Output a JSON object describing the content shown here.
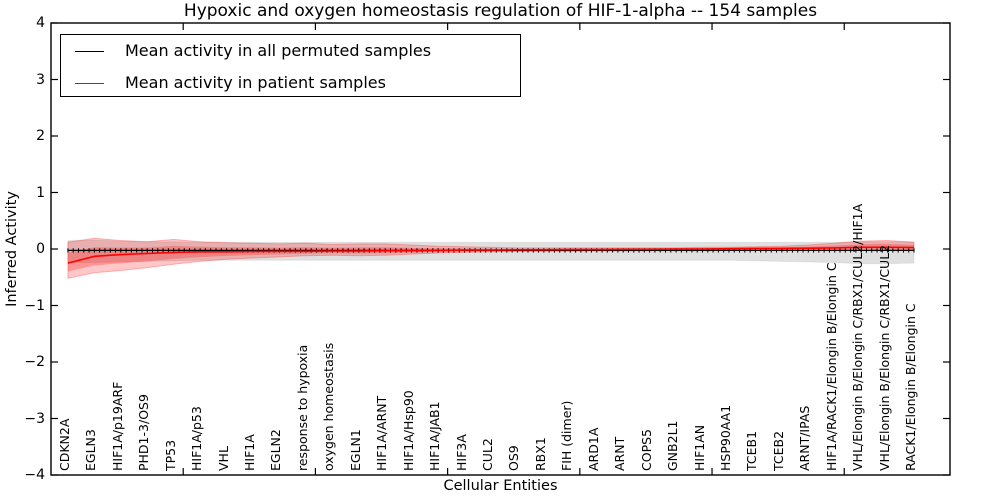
{
  "chart_data": {
    "type": "line",
    "title": "Hypoxic and oxygen homeostasis regulation of HIF-1-alpha -- 154 samples",
    "xlabel": "Cellular Entities",
    "ylabel": "Inferred Activity",
    "ylim": [
      -4,
      4
    ],
    "xlim": [
      0,
      170
    ],
    "grid": false,
    "legend_position": "upper left",
    "y_tick_values": [
      4,
      3,
      2,
      1,
      0,
      -1,
      -2,
      -3,
      -4
    ],
    "y_tick_labels": [
      "4",
      "3",
      "2",
      "1",
      "0",
      "−1",
      "−2",
      "−3",
      "−4"
    ],
    "x_tick_values": [
      25,
      50,
      75,
      100,
      125,
      150
    ],
    "category_x_start": 3.2,
    "category_x_step": 5,
    "categories": [
      "CDKN2A",
      "EGLN3",
      "HIF1A/p19ARF",
      "PHD1-3/OS9",
      "TP53",
      "HIF1A/p53",
      "VHL",
      "HIF1A",
      "EGLN2",
      "response to hypoxia",
      "oxygen homeostasis",
      "EGLN1",
      "HIF1A/ARNT",
      "HIF1A/Hsp90",
      "HIF1A/JAB1",
      "HIF3A",
      "CUL2",
      "OS9",
      "RBX1",
      "FIH (dimer)",
      "ARD1A",
      "ARNT",
      "COPS5",
      "GNB2L1",
      "HIF1AN",
      "HSP90AA1",
      "TCEB1",
      "TCEB2",
      "ARNT/IPAS",
      "HIF1A/RACK1/Elongin B/Elongin C",
      "VHL/Elongin B/Elongin C/RBX1/CUL2/HIF1A",
      "VHL/Elongin B/Elongin C/RBX1/CUL2",
      "RACK1/Elongin B/Elongin C"
    ],
    "series": [
      {
        "name": "Mean activity in all permuted samples",
        "color": "#000000",
        "line_width": 1.3,
        "markers": true,
        "marker_count": 161,
        "values": [
          -0.025,
          -0.025,
          -0.025,
          -0.025,
          -0.025,
          -0.025,
          -0.025,
          -0.025,
          -0.025,
          -0.025,
          -0.025,
          -0.025,
          -0.025,
          -0.025,
          -0.025,
          -0.025,
          -0.025,
          -0.025,
          -0.025,
          -0.025,
          -0.025,
          -0.025,
          -0.025,
          -0.025,
          -0.025,
          -0.025,
          -0.025,
          -0.025,
          -0.025,
          -0.025,
          -0.025,
          -0.025,
          -0.025
        ],
        "band_upper": [
          0.15,
          0.16,
          0.14,
          0.13,
          0.13,
          0.12,
          0.12,
          0.12,
          0.12,
          0.12,
          0.12,
          0.12,
          0.12,
          0.12,
          0.12,
          0.12,
          0.12,
          0.12,
          0.12,
          0.12,
          0.12,
          0.12,
          0.12,
          0.12,
          0.12,
          0.12,
          0.12,
          0.12,
          0.12,
          0.12,
          0.13,
          0.13,
          0.13
        ],
        "band_lower": [
          -0.24,
          -0.24,
          -0.23,
          -0.22,
          -0.21,
          -0.2,
          -0.2,
          -0.2,
          -0.2,
          -0.2,
          -0.2,
          -0.2,
          -0.2,
          -0.2,
          -0.2,
          -0.2,
          -0.2,
          -0.2,
          -0.2,
          -0.2,
          -0.2,
          -0.2,
          -0.2,
          -0.2,
          -0.2,
          -0.2,
          -0.21,
          -0.22,
          -0.23,
          -0.24,
          -0.26,
          -0.26,
          -0.25
        ],
        "band_color": "rgba(0,0,0,0.12)"
      },
      {
        "name": "Mean activity in patient samples",
        "color": "#ff0000",
        "line_width": 1.6,
        "markers": false,
        "values": [
          -0.25,
          -0.13,
          -0.1,
          -0.08,
          -0.06,
          -0.05,
          -0.05,
          -0.045,
          -0.04,
          -0.04,
          -0.035,
          -0.035,
          -0.03,
          -0.03,
          -0.025,
          -0.02,
          -0.02,
          -0.015,
          -0.015,
          -0.01,
          -0.01,
          -0.005,
          -0.005,
          0,
          0,
          0.005,
          0.01,
          0.01,
          0.015,
          0.02,
          0.03,
          0.03,
          0.025
        ],
        "band_upper": [
          0.12,
          0.19,
          0.15,
          0.13,
          0.17,
          0.13,
          0.11,
          0.1,
          0.09,
          0.1,
          0.08,
          0.09,
          0.09,
          0.07,
          0.05,
          0.04,
          0.03,
          0.02,
          0.02,
          0.02,
          0.02,
          0.02,
          0.02,
          0.02,
          0.03,
          0.03,
          0.04,
          0.05,
          0.07,
          0.1,
          0.14,
          0.15,
          0.12
        ],
        "band_lower": [
          -0.52,
          -0.42,
          -0.38,
          -0.33,
          -0.27,
          -0.22,
          -0.18,
          -0.16,
          -0.14,
          -0.12,
          -0.11,
          -0.12,
          -0.11,
          -0.09,
          -0.07,
          -0.06,
          -0.05,
          -0.045,
          -0.04,
          -0.04,
          -0.035,
          -0.035,
          -0.03,
          -0.03,
          -0.03,
          -0.025,
          -0.02,
          -0.02,
          -0.015,
          -0.01,
          -0.005,
          -0.005,
          -0.01
        ],
        "band_color": "rgba(255,0,0,0.22)"
      }
    ]
  },
  "legend": {
    "items": [
      {
        "label": "Mean activity in all permuted samples",
        "color": "#000000"
      },
      {
        "label": "Mean activity in patient samples",
        "color": "#ff0000"
      }
    ]
  }
}
